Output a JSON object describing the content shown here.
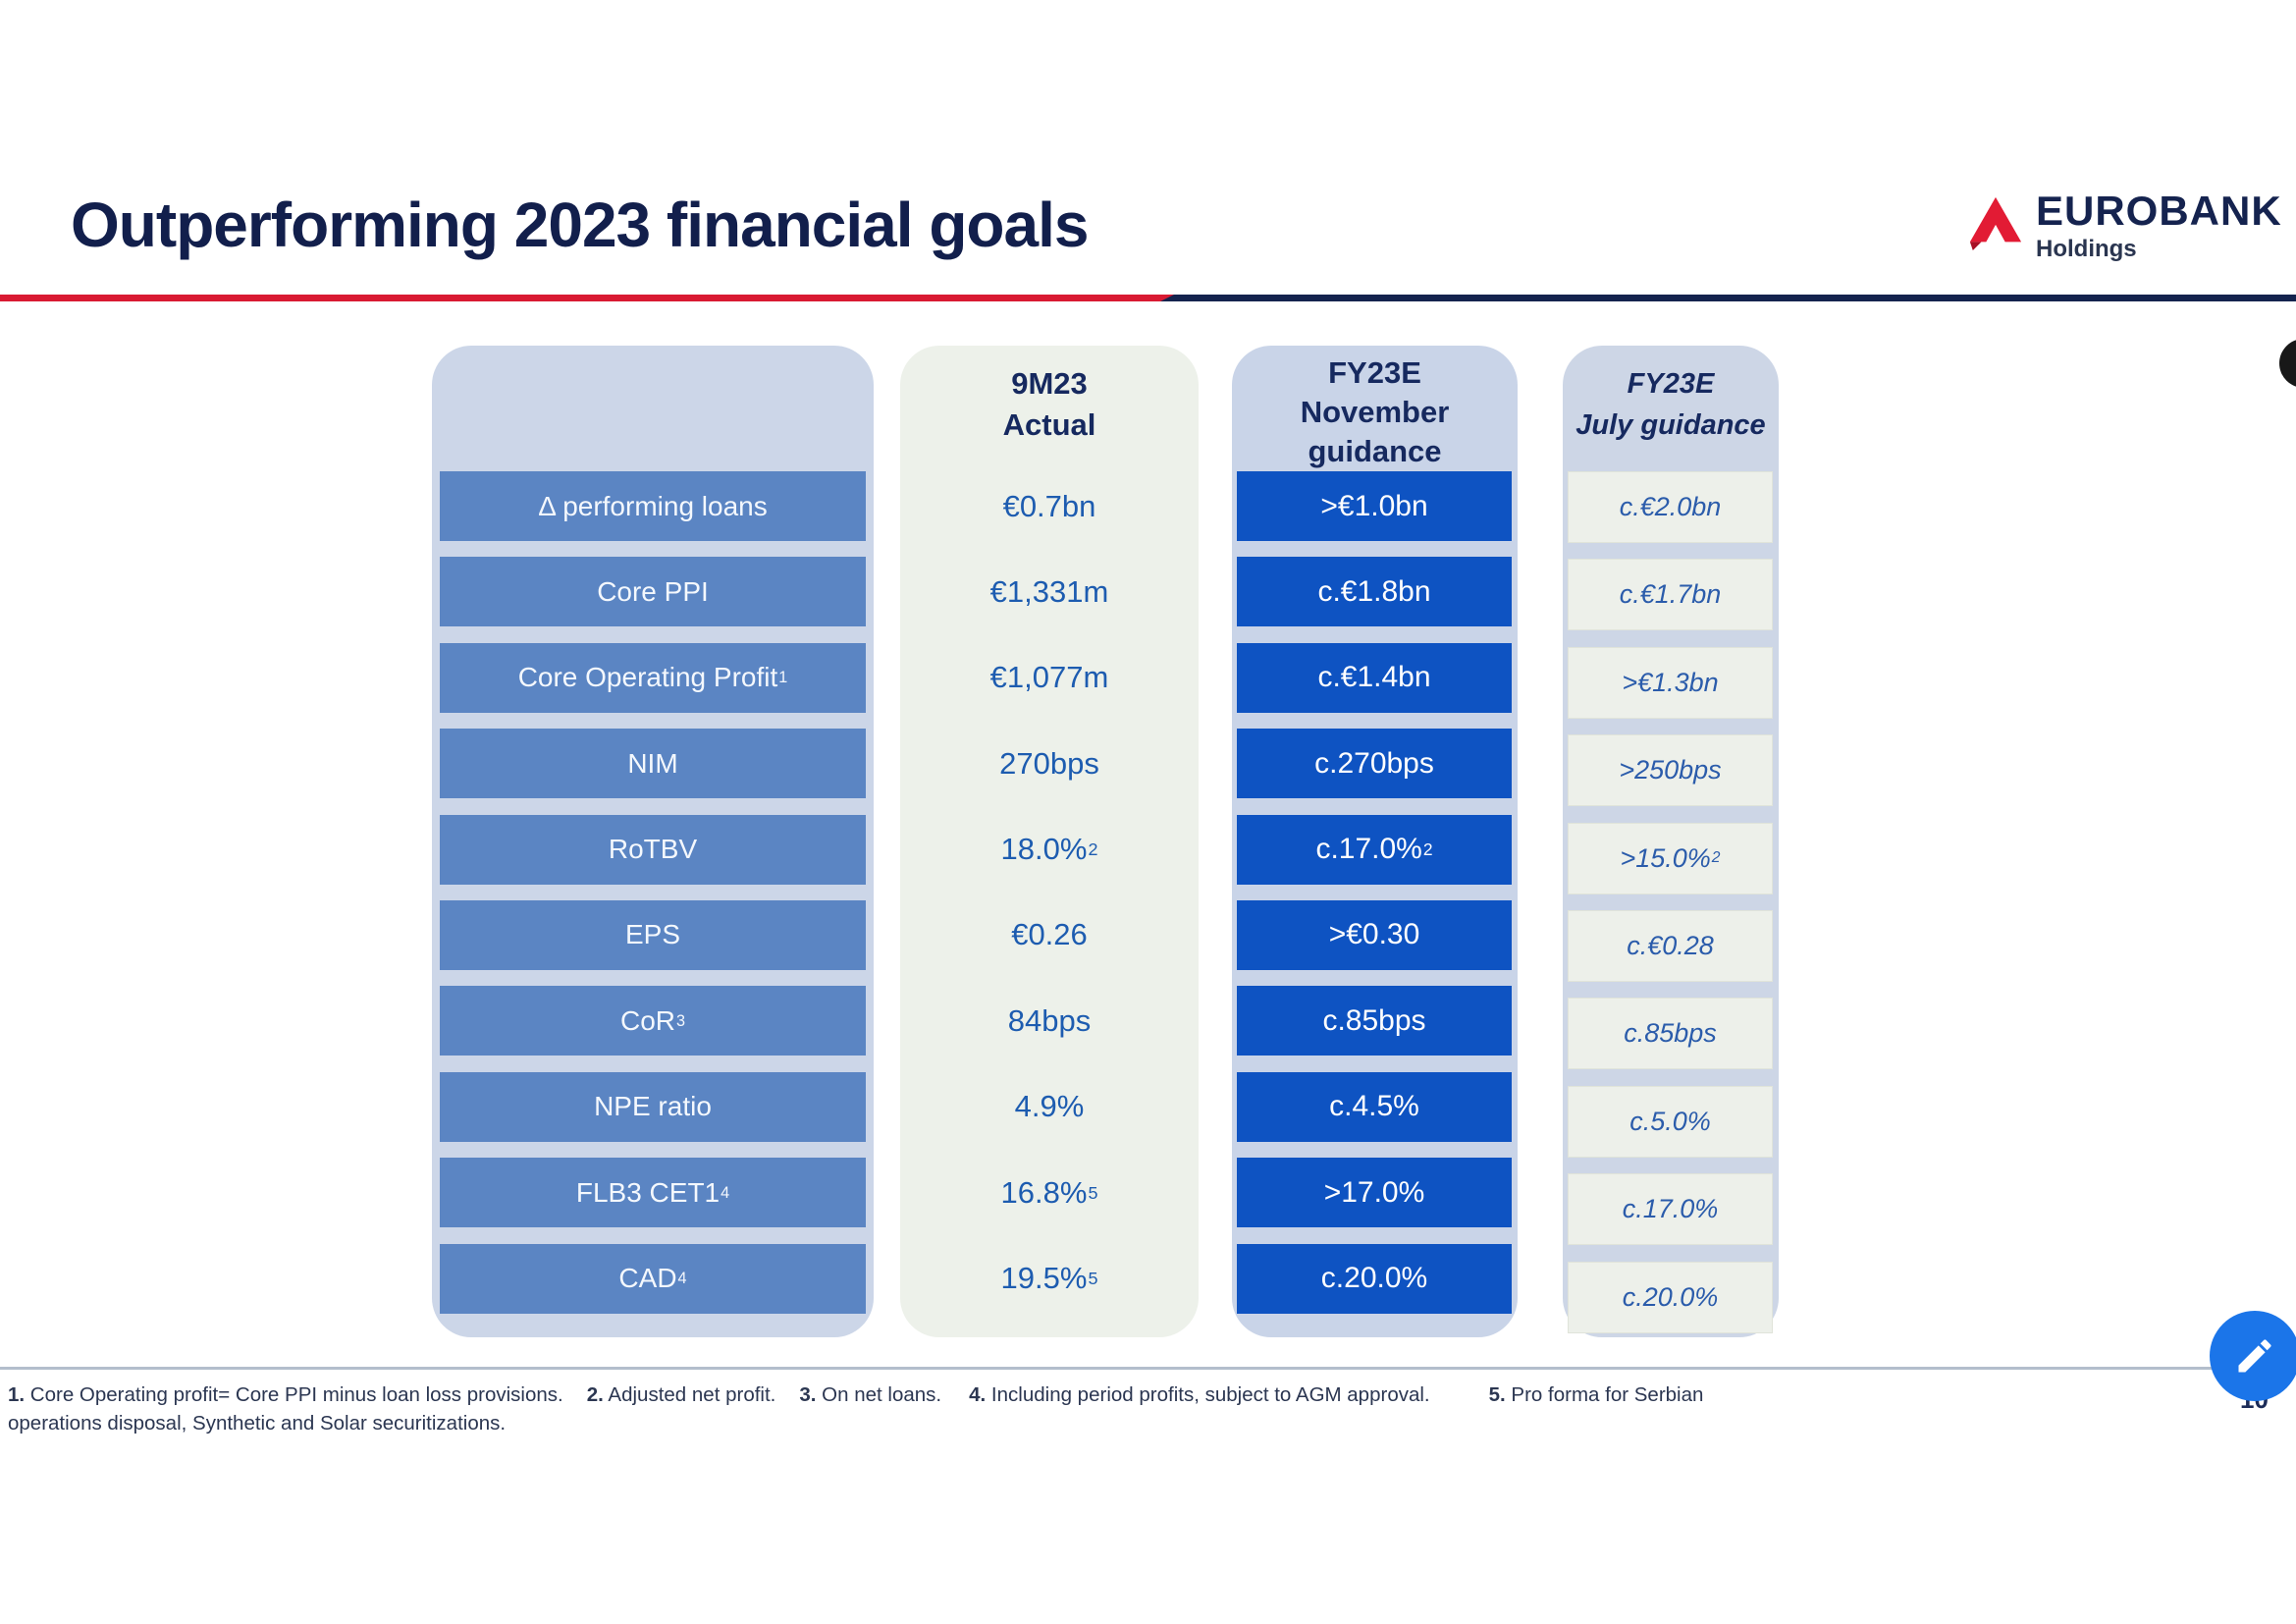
{
  "title": "Outperforming 2023 financial goals",
  "logo": {
    "brand": "EUROBANK",
    "subtitle": "Holdings"
  },
  "table": {
    "headers": {
      "actual": [
        "9M23",
        "Actual"
      ],
      "november": [
        "FY23E",
        "November",
        "guidance"
      ],
      "july": [
        "FY23E",
        "July guidance"
      ]
    },
    "rows": [
      {
        "label": "Δ performing loans",
        "label_sup": "",
        "actual": "€0.7bn",
        "actual_sup": "",
        "november": ">€1.0bn",
        "november_sup": "",
        "july": "c.€2.0bn",
        "july_sup": ""
      },
      {
        "label": "Core PPI",
        "label_sup": "",
        "actual": "€1,331m",
        "actual_sup": "",
        "november": "c.€1.8bn",
        "november_sup": "",
        "july": "c.€1.7bn",
        "july_sup": ""
      },
      {
        "label": "Core Operating Profit",
        "label_sup": "1",
        "actual": "€1,077m",
        "actual_sup": "",
        "november": "c.€1.4bn",
        "november_sup": "",
        "july": ">€1.3bn",
        "july_sup": ""
      },
      {
        "label": "NIM",
        "label_sup": "",
        "actual": "270bps",
        "actual_sup": "",
        "november": "c.270bps",
        "november_sup": "",
        "july": ">250bps",
        "july_sup": ""
      },
      {
        "label": "RoTBV",
        "label_sup": "",
        "actual": "18.0%",
        "actual_sup": "2",
        "november": "c.17.0%",
        "november_sup": "2",
        "july": ">15.0%",
        "july_sup": "2"
      },
      {
        "label": "EPS",
        "label_sup": "",
        "actual": "€0.26",
        "actual_sup": "",
        "november": ">€0.30",
        "november_sup": "",
        "july": "c.€0.28",
        "july_sup": ""
      },
      {
        "label": "CoR",
        "label_sup": "3",
        "actual": "84bps",
        "actual_sup": "",
        "november": "c.85bps",
        "november_sup": "",
        "july": "c.85bps",
        "july_sup": ""
      },
      {
        "label": "NPE ratio",
        "label_sup": "",
        "actual": "4.9%",
        "actual_sup": "",
        "november": "c.4.5%",
        "november_sup": "",
        "july": "c.5.0%",
        "july_sup": ""
      },
      {
        "label": "FLB3 CET1",
        "label_sup": "4",
        "actual": "16.8%",
        "actual_sup": "5",
        "november": ">17.0%",
        "november_sup": "",
        "july": "c.17.0%",
        "july_sup": ""
      },
      {
        "label": "CAD",
        "label_sup": "4",
        "actual": "19.5%",
        "actual_sup": "5",
        "november": "c.20.0%",
        "november_sup": "",
        "july": "c.20.0%",
        "july_sup": ""
      }
    ]
  },
  "footnotes": {
    "items": [
      {
        "num": "1.",
        "text": "Core Operating profit= Core PPI minus loan loss provisions."
      },
      {
        "num": "2.",
        "text": "Adjusted net profit."
      },
      {
        "num": "3.",
        "text": "On net loans."
      },
      {
        "num": "4.",
        "text": "Including period profits, subject to AGM approval."
      },
      {
        "num": "5.",
        "text": "Pro forma for Serbian"
      }
    ],
    "continuation": "operations disposal, Synthetic and Solar securitizations."
  },
  "page_number": "10",
  "icons": {
    "logo_mark": "eurobank-logo-icon",
    "edit_button": "pencil-icon"
  },
  "colors": {
    "accent_red": "#D91A32",
    "navy": "#14234E",
    "title_navy": "#121F4C",
    "label_cell_blue": "#5B85C3",
    "guidance_cell_blue": "#0E53C2",
    "container_blue_grey": "#CCD6E8",
    "column_off_white": "#EDF1EA",
    "value_text_blue": "#1D5CB0",
    "edit_button_blue": "#1B75E9"
  }
}
